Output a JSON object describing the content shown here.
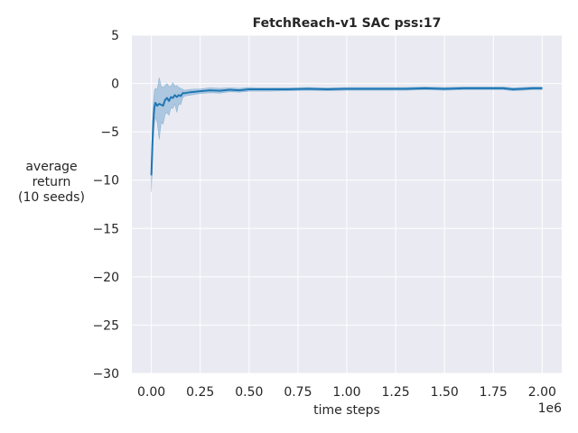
{
  "chart_data": {
    "type": "line",
    "title": "FetchReach-v1 SAC pss:17",
    "xlabel": "time steps",
    "ylabel_lines": [
      "average",
      "return",
      "(10 seeds)"
    ],
    "x_offset_label": "1e6",
    "xlim": [
      -0.1,
      2.1
    ],
    "ylim": [
      -30,
      5
    ],
    "x_ticks": [
      0.0,
      0.25,
      0.5,
      0.75,
      1.0,
      1.25,
      1.5,
      1.75,
      2.0
    ],
    "x_tick_labels": [
      "0.00",
      "0.25",
      "0.50",
      "0.75",
      "1.00",
      "1.25",
      "1.50",
      "1.75",
      "2.00"
    ],
    "y_ticks": [
      5,
      0,
      -5,
      -10,
      -15,
      -20,
      -25,
      -30
    ],
    "y_tick_labels": [
      "5",
      "0",
      "−5",
      "−10",
      "−15",
      "−20",
      "−25",
      "−30"
    ],
    "grid": true,
    "series": [
      {
        "name": "SAC",
        "color": "#1f77b4",
        "x": [
          0.0,
          0.005,
          0.01,
          0.015,
          0.02,
          0.03,
          0.04,
          0.05,
          0.06,
          0.07,
          0.08,
          0.09,
          0.1,
          0.11,
          0.12,
          0.13,
          0.14,
          0.15,
          0.16,
          0.17,
          0.2,
          0.25,
          0.3,
          0.35,
          0.4,
          0.45,
          0.5,
          0.55,
          0.6,
          0.7,
          0.8,
          0.9,
          1.0,
          1.1,
          1.2,
          1.3,
          1.4,
          1.5,
          1.6,
          1.7,
          1.8,
          1.85,
          1.9,
          1.95,
          2.0
        ],
        "mean": [
          -9.5,
          -6.5,
          -3.8,
          -2.5,
          -2.0,
          -2.3,
          -2.1,
          -2.2,
          -2.3,
          -1.7,
          -1.5,
          -1.8,
          -1.4,
          -1.5,
          -1.2,
          -1.4,
          -1.2,
          -1.3,
          -1.0,
          -1.0,
          -0.9,
          -0.8,
          -0.7,
          -0.75,
          -0.65,
          -0.7,
          -0.6,
          -0.6,
          -0.6,
          -0.6,
          -0.55,
          -0.6,
          -0.55,
          -0.55,
          -0.55,
          -0.55,
          -0.5,
          -0.55,
          -0.5,
          -0.5,
          -0.5,
          -0.6,
          -0.55,
          -0.5,
          -0.5
        ],
        "upper": [
          -8.0,
          -4.5,
          -2.0,
          -0.8,
          -0.5,
          -0.6,
          0.6,
          -0.3,
          -0.4,
          -0.2,
          0.0,
          -0.3,
          -0.3,
          0.1,
          -0.3,
          -0.2,
          -0.4,
          -0.5,
          -0.6,
          -0.7,
          -0.6,
          -0.55,
          -0.45,
          -0.5,
          -0.45,
          -0.5,
          -0.4,
          -0.45,
          -0.45,
          -0.45,
          -0.4,
          -0.45,
          -0.4,
          -0.4,
          -0.4,
          -0.4,
          -0.35,
          -0.4,
          -0.35,
          -0.35,
          -0.35,
          -0.45,
          -0.4,
          -0.35,
          -0.35
        ],
        "lower": [
          -11.2,
          -8.5,
          -5.7,
          -4.2,
          -3.5,
          -4.0,
          -5.8,
          -4.0,
          -4.2,
          -3.2,
          -3.0,
          -3.3,
          -2.5,
          -2.6,
          -2.1,
          -3.0,
          -2.1,
          -2.2,
          -1.5,
          -1.3,
          -1.2,
          -1.05,
          -0.95,
          -1.0,
          -0.85,
          -0.9,
          -0.8,
          -0.8,
          -0.8,
          -0.75,
          -0.7,
          -0.75,
          -0.7,
          -0.7,
          -0.7,
          -0.7,
          -0.65,
          -0.7,
          -0.65,
          -0.65,
          -0.65,
          -0.75,
          -0.7,
          -0.65,
          -0.65
        ]
      }
    ]
  }
}
